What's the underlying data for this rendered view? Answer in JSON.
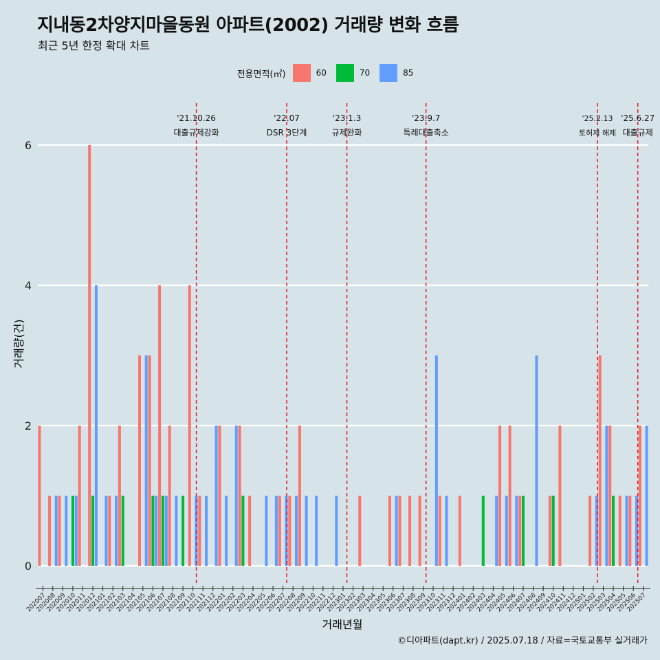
{
  "header": {
    "title": "지내동2차양지마을동원 아파트(2002) 거래량 변화 흐름",
    "subtitle": "최근 5년 한정 확대 차트"
  },
  "caption": "©디아파트(dapt.kr) / 2025.07.18 / 자료=국토교통부 실거래가",
  "colors": {
    "background": "#d6e4ea",
    "60": "#f8766d",
    "70": "#00ba38",
    "85": "#619cff",
    "event_line": "#e41a1c",
    "grid": "#ffffff"
  },
  "chart_data": {
    "type": "bar",
    "xlabel": "거래년월",
    "ylabel": "거래량(건)",
    "ylim": [
      0,
      6
    ],
    "yticks": [
      0,
      2,
      4,
      6
    ],
    "legend": {
      "title": "전용면적(㎡)",
      "position": "top",
      "entries": [
        "60",
        "70",
        "85"
      ]
    },
    "categories": [
      "202007",
      "202008",
      "202009",
      "202010",
      "202011",
      "202012",
      "202101",
      "202102",
      "202103",
      "202104",
      "202105",
      "202106",
      "202107",
      "202108",
      "202109",
      "202110",
      "202111",
      "202112",
      "202201",
      "202202",
      "202203",
      "202204",
      "202205",
      "202206",
      "202207",
      "202208",
      "202209",
      "202210",
      "202211",
      "202212",
      "202301",
      "202302",
      "202303",
      "202304",
      "202305",
      "202306",
      "202307",
      "202308",
      "202309",
      "202310",
      "202311",
      "202312",
      "202401",
      "202402",
      "202403",
      "202404",
      "202405",
      "202406",
      "202407",
      "202408",
      "202409",
      "202410",
      "202411",
      "202412",
      "202501",
      "202502",
      "202503",
      "202504",
      "202505",
      "202506",
      "202507"
    ],
    "series": [
      {
        "name": "60",
        "values": [
          2,
          1,
          1,
          0,
          2,
          6,
          0,
          1,
          2,
          0,
          3,
          3,
          4,
          2,
          0,
          4,
          1,
          0,
          2,
          0,
          2,
          1,
          0,
          0,
          1,
          1,
          2,
          0,
          0,
          0,
          0,
          0,
          1,
          0,
          0,
          1,
          1,
          1,
          1,
          0,
          1,
          0,
          1,
          0,
          0,
          0,
          2,
          2,
          1,
          0,
          0,
          1,
          2,
          0,
          0,
          1,
          3,
          2,
          1,
          1,
          2
        ]
      },
      {
        "name": "70",
        "values": [
          0,
          0,
          0,
          1,
          0,
          1,
          0,
          0,
          1,
          0,
          0,
          1,
          1,
          0,
          1,
          0,
          0,
          0,
          0,
          0,
          1,
          0,
          0,
          0,
          0,
          0,
          0,
          0,
          0,
          0,
          0,
          0,
          0,
          0,
          0,
          0,
          0,
          0,
          0,
          0,
          0,
          0,
          0,
          0,
          1,
          0,
          0,
          0,
          1,
          0,
          0,
          1,
          0,
          0,
          0,
          0,
          0,
          1,
          0,
          0,
          0
        ]
      },
      {
        "name": "85",
        "values": [
          0,
          1,
          1,
          1,
          0,
          4,
          1,
          1,
          0,
          0,
          3,
          1,
          1,
          1,
          0,
          1,
          1,
          2,
          1,
          2,
          0,
          0,
          1,
          1,
          1,
          1,
          1,
          1,
          0,
          1,
          0,
          0,
          0,
          0,
          0,
          1,
          0,
          0,
          0,
          3,
          1,
          0,
          0,
          0,
          0,
          1,
          1,
          1,
          0,
          3,
          0,
          0,
          0,
          0,
          0,
          1,
          2,
          0,
          1,
          1,
          2
        ]
      }
    ],
    "events": [
      {
        "date": "'21.10.26",
        "label": "대출규제강화",
        "index": 15.84
      },
      {
        "date": "'22.07",
        "label": "DSR 3단계",
        "index": 24.87
      },
      {
        "date": "'23.1.3",
        "label": "규제완화",
        "index": 30.88
      },
      {
        "date": "'23.9.7",
        "label": "특례대출축소",
        "index": 38.79
      },
      {
        "date": "'25.2.13",
        "label": "토허제 해제",
        "index": 55.92
      },
      {
        "date": "'25.6.27",
        "label": "대출규제",
        "index": 59.95
      }
    ]
  }
}
